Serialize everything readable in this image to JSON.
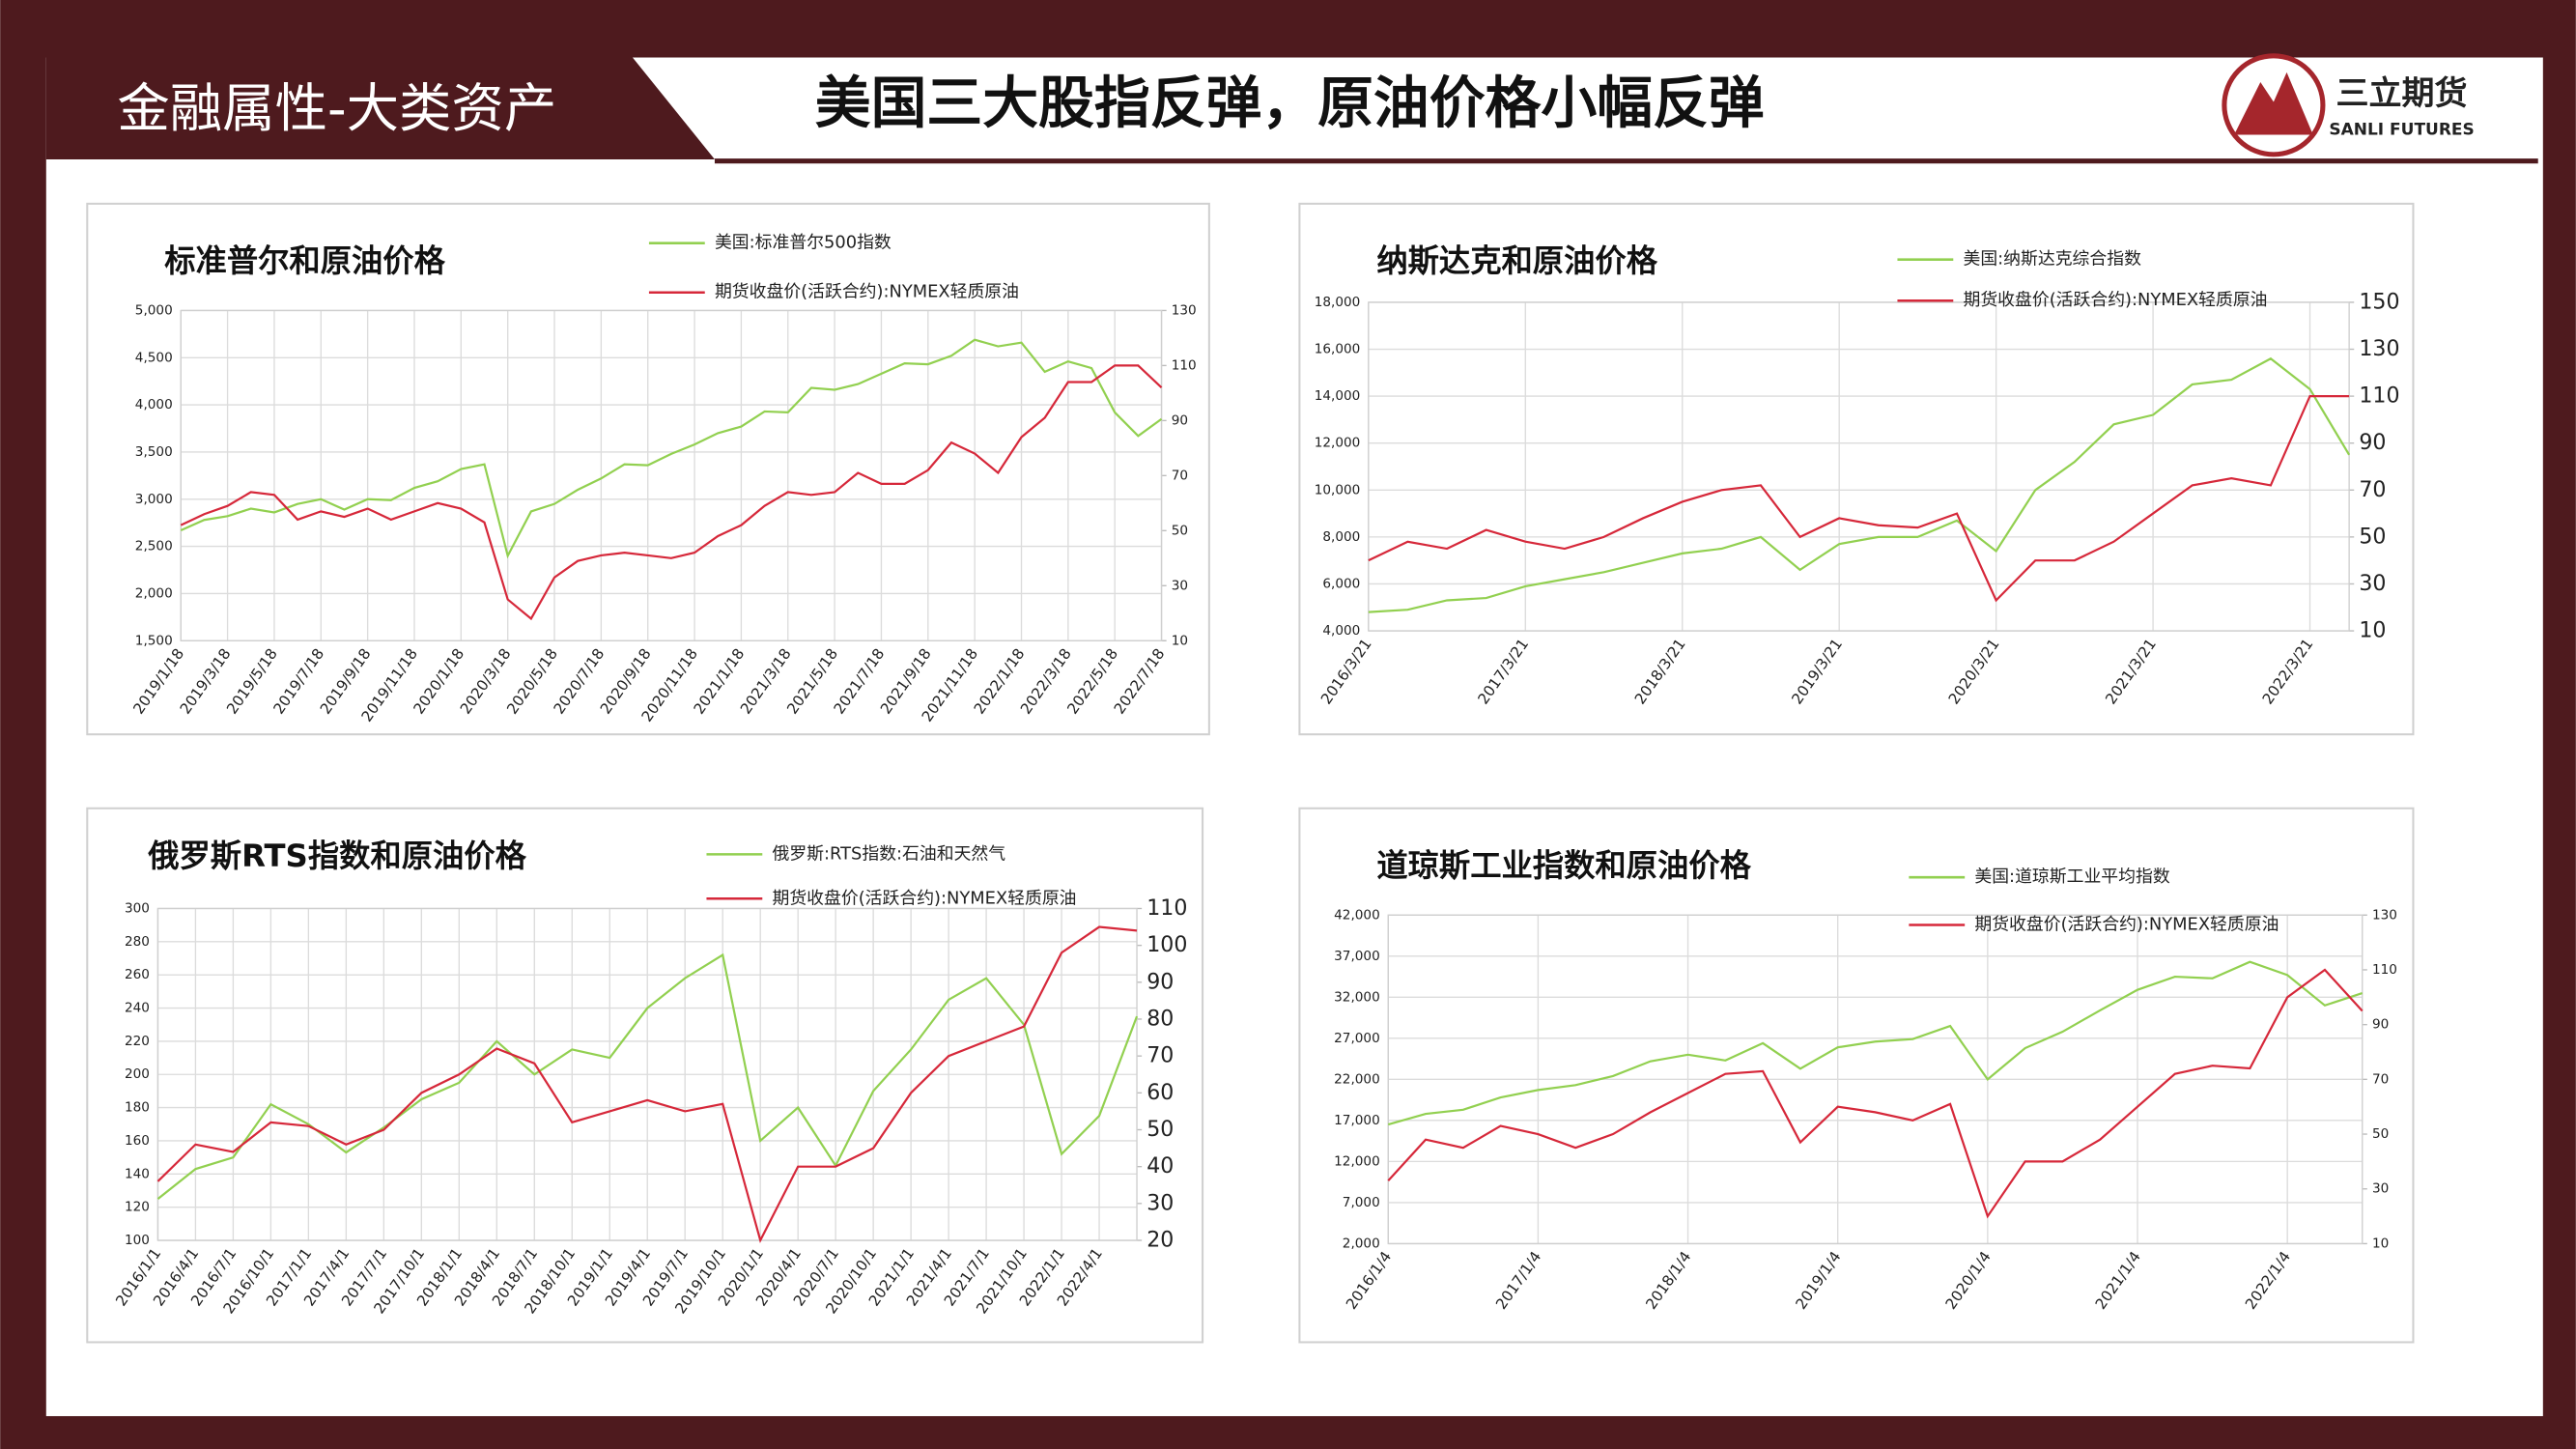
{
  "header": {
    "section": "金融属性-大类资产",
    "title": "美国三大股指反弹，原油价格小幅反弹",
    "logo_cn": "三立期货",
    "logo_en": "SANLI FUTURES"
  },
  "chart_data": [
    {
      "type": "line",
      "title": "标准普尔和原油价格",
      "categories": [
        "2019/1/18",
        null,
        "2019/3/18",
        null,
        "2019/5/18",
        null,
        "2019/7/18",
        null,
        "2019/9/18",
        null,
        "2019/11/18",
        null,
        "2020/1/18",
        null,
        "2020/3/18",
        null,
        "2020/5/18",
        null,
        "2020/7/18",
        null,
        "2020/9/18",
        null,
        "2020/11/18",
        null,
        "2021/1/18",
        null,
        "2021/3/18",
        null,
        "2021/5/18",
        null,
        "2021/7/18",
        null,
        "2021/9/18",
        null,
        "2021/11/18",
        null,
        "2022/1/18",
        null,
        "2022/3/18",
        null,
        "2022/5/18",
        null,
        "2022/7/18"
      ],
      "series": [
        {
          "name": "美国:标准普尔500指数",
          "color": "#92d050",
          "values": [
            2670,
            2780,
            2820,
            2900,
            2860,
            2950,
            3000,
            2890,
            3000,
            2990,
            3120,
            3190,
            3320,
            3370,
            2400,
            2870,
            2950,
            3100,
            3220,
            3370,
            3360,
            3480,
            3580,
            3700,
            3770,
            3930,
            3920,
            4180,
            4160,
            4220,
            4330,
            4440,
            4430,
            4520,
            4690,
            4620,
            4660,
            4350,
            4460,
            4390,
            3920,
            3670,
            3850
          ]
        },
        {
          "name": "期货收盘价(活跃合约):NYMEX轻质原油",
          "color": "#d6283a",
          "axis": "y2",
          "values": [
            52,
            56,
            59,
            64,
            63,
            54,
            57,
            55,
            58,
            54,
            57,
            60,
            58,
            53,
            25,
            18,
            33,
            39,
            41,
            42,
            41,
            40,
            42,
            48,
            52,
            59,
            64,
            63,
            64,
            71,
            67,
            67,
            72,
            82,
            78,
            71,
            84,
            91,
            104,
            104,
            110,
            110,
            102
          ]
        }
      ],
      "ylim": [
        1500,
        5000
      ],
      "yticks": [
        {
          "value": 1500,
          "label": "1,500"
        },
        {
          "value": 2000,
          "label": "2,000"
        },
        {
          "value": 2500,
          "label": "2,500"
        },
        {
          "value": 3000,
          "label": "3,000"
        },
        {
          "value": 3500,
          "label": "3,500"
        },
        {
          "value": 4000,
          "label": "4,000"
        },
        {
          "value": 4500,
          "label": "4,500"
        },
        {
          "value": 5000,
          "label": "5,000"
        }
      ],
      "y2lim": [
        10,
        130
      ],
      "y2ticks": [
        10,
        30,
        50,
        70,
        90,
        110,
        130
      ],
      "grid": true
    },
    {
      "type": "line",
      "title": "纳斯达克和原油价格",
      "categories": [
        "2016/3/21",
        null,
        null,
        null,
        "2017/3/21",
        null,
        null,
        null,
        "2018/3/21",
        null,
        null,
        null,
        "2019/3/21",
        null,
        null,
        null,
        "2020/3/21",
        null,
        null,
        null,
        "2021/3/21",
        null,
        null,
        null,
        "2022/3/21",
        null
      ],
      "series": [
        {
          "name": "美国:纳斯达克综合指数",
          "color": "#92d050",
          "values": [
            4800,
            4900,
            5300,
            5400,
            5900,
            6200,
            6500,
            6900,
            7300,
            7500,
            8000,
            6600,
            7700,
            8000,
            8000,
            8700,
            7400,
            10000,
            11200,
            12800,
            13200,
            14500,
            14700,
            15600,
            14300,
            11500
          ]
        },
        {
          "name": "期货收盘价(活跃合约):NYMEX轻质原油",
          "color": "#d6283a",
          "axis": "y2",
          "values": [
            40,
            48,
            45,
            53,
            48,
            45,
            50,
            58,
            65,
            70,
            72,
            50,
            58,
            55,
            54,
            60,
            23,
            40,
            40,
            48,
            60,
            72,
            75,
            72,
            110,
            110
          ]
        }
      ],
      "ylim": [
        4000,
        18000
      ],
      "yticks": [
        {
          "value": 4000,
          "label": "4,000"
        },
        {
          "value": 6000,
          "label": "6,000"
        },
        {
          "value": 8000,
          "label": "8,000"
        },
        {
          "value": 10000,
          "label": "10,000"
        },
        {
          "value": 12000,
          "label": "12,000"
        },
        {
          "value": 14000,
          "label": "14,000"
        },
        {
          "value": 16000,
          "label": "16,000"
        },
        {
          "value": 18000,
          "label": "18,000"
        }
      ],
      "y2lim": [
        10,
        150
      ],
      "y2ticks": [
        10,
        30,
        50,
        70,
        90,
        110,
        130,
        150
      ],
      "grid": true
    },
    {
      "type": "line",
      "title": "俄罗斯RTS指数和原油价格",
      "categories": [
        "2016/1/1",
        "2016/4/1",
        "2016/7/1",
        "2016/10/1",
        "2017/1/1",
        "2017/4/1",
        "2017/7/1",
        "2017/10/1",
        "2018/1/1",
        "2018/4/1",
        "2018/7/1",
        "2018/10/1",
        "2019/1/1",
        "2019/4/1",
        "2019/7/1",
        "2019/10/1",
        "2020/1/1",
        "2020/4/1",
        "2020/7/1",
        "2020/10/1",
        "2021/1/1",
        "2021/4/1",
        "2021/7/1",
        "2021/10/1",
        "2022/1/1",
        "2022/4/1",
        null
      ],
      "series": [
        {
          "name": "俄罗斯:RTS指数:石油和天然气",
          "color": "#92d050",
          "values": [
            125,
            143,
            150,
            182,
            170,
            153,
            168,
            185,
            195,
            220,
            200,
            215,
            210,
            240,
            258,
            272,
            160,
            180,
            145,
            190,
            215,
            245,
            258,
            230,
            152,
            175,
            235
          ]
        },
        {
          "name": "期货收盘价(活跃合约):NYMEX轻质原油",
          "color": "#d6283a",
          "axis": "y2",
          "values": [
            36,
            46,
            44,
            52,
            51,
            46,
            50,
            60,
            65,
            72,
            68,
            52,
            55,
            58,
            55,
            57,
            20,
            40,
            40,
            45,
            60,
            70,
            74,
            78,
            98,
            105,
            104
          ]
        }
      ],
      "ylim": [
        100,
        300
      ],
      "yticks": [
        100,
        120,
        140,
        160,
        180,
        200,
        220,
        240,
        260,
        280,
        300
      ],
      "y2lim": [
        20,
        110
      ],
      "y2ticks": [
        20,
        30,
        40,
        50,
        60,
        70,
        80,
        90,
        100,
        110
      ],
      "grid": true
    },
    {
      "type": "line",
      "title": "道琼斯工业指数和原油价格",
      "categories": [
        "2016/1/4",
        null,
        null,
        null,
        "2017/1/4",
        null,
        null,
        null,
        "2018/1/4",
        null,
        null,
        null,
        "2019/1/4",
        null,
        null,
        null,
        "2020/1/4",
        null,
        null,
        null,
        "2021/1/4",
        null,
        null,
        null,
        "2022/1/4",
        null,
        null
      ],
      "series": [
        {
          "name": "美国:道琼斯工业平均指数",
          "color": "#92d050",
          "values": [
            16500,
            17800,
            18300,
            19800,
            20700,
            21300,
            22400,
            24200,
            25000,
            24300,
            26400,
            23300,
            25900,
            26600,
            26900,
            28500,
            22000,
            25800,
            27800,
            30400,
            32900,
            34500,
            34300,
            36300,
            34700,
            31000,
            32500
          ]
        },
        {
          "name": "期货收盘价(活跃合约):NYMEX轻质原油",
          "color": "#d6283a",
          "axis": "y2",
          "values": [
            33,
            48,
            45,
            53,
            50,
            45,
            50,
            58,
            65,
            72,
            73,
            47,
            60,
            58,
            55,
            61,
            20,
            40,
            40,
            48,
            60,
            72,
            75,
            74,
            100,
            110,
            95
          ]
        }
      ],
      "ylim": [
        2000,
        42000
      ],
      "yticks": [
        {
          "value": 2000,
          "label": "2,000"
        },
        {
          "value": 7000,
          "label": "7,000"
        },
        {
          "value": 12000,
          "label": "12,000"
        },
        {
          "value": 17000,
          "label": "17,000"
        },
        {
          "value": 22000,
          "label": "22,000"
        },
        {
          "value": 27000,
          "label": "27,000"
        },
        {
          "value": 32000,
          "label": "32,000"
        },
        {
          "value": 37000,
          "label": "37,000"
        },
        {
          "value": 42000,
          "label": "42,000"
        }
      ],
      "y2lim": [
        10,
        130
      ],
      "y2ticks": [
        10,
        30,
        50,
        70,
        90,
        110,
        130
      ],
      "grid": true
    }
  ]
}
